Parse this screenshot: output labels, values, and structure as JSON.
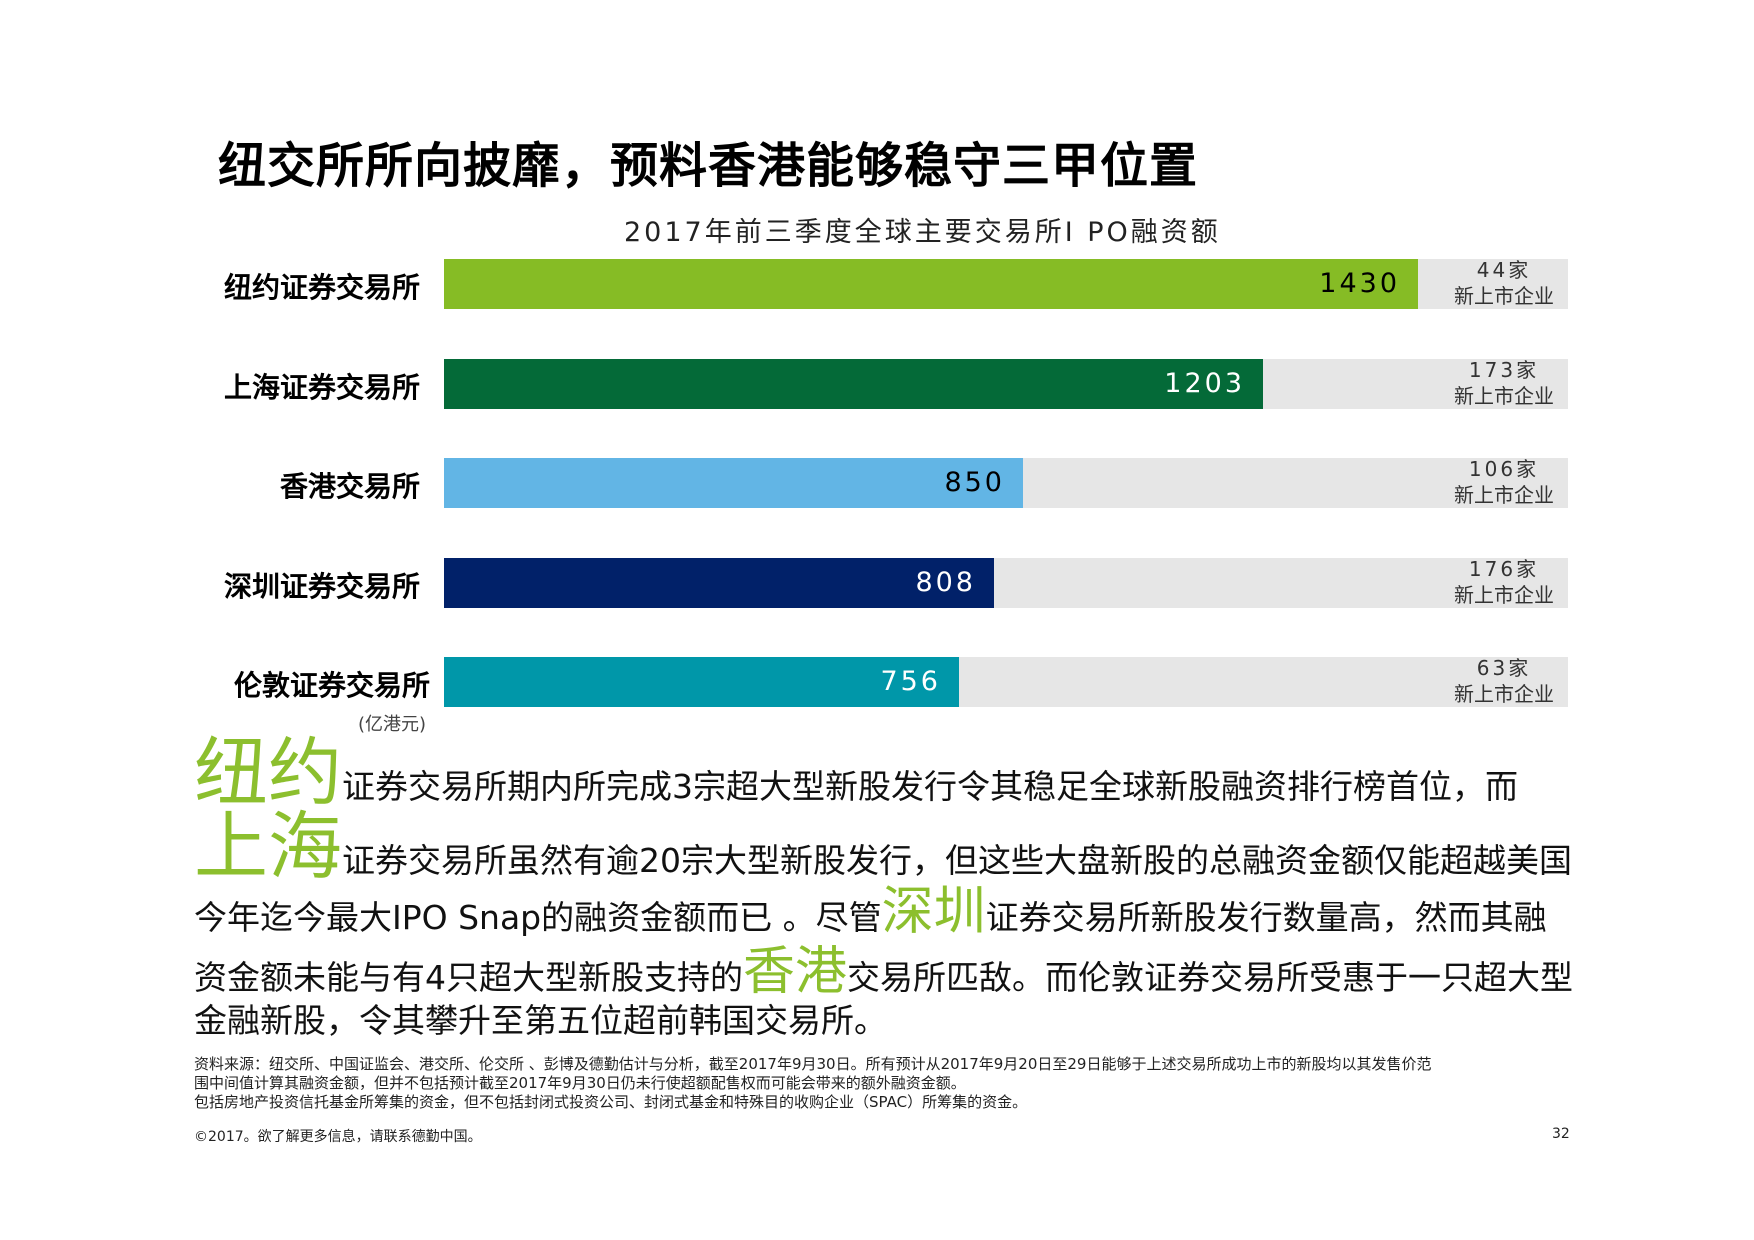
{
  "title": "纽交所所向披靡，预料香港能够稳守三甲位置",
  "chart_data": {
    "type": "bar",
    "orientation": "horizontal",
    "title": "2017年前三季度全球主要交易所I PO融资额",
    "unit_label": "(亿港元)",
    "categories": [
      "纽约证券交易所",
      "上海证券交易所",
      "香港交易所",
      "深圳证券交易所",
      "伦敦证券交易所"
    ],
    "values": [
      1430,
      1203,
      850,
      808,
      756
    ],
    "value_labels": [
      "1430",
      "1203",
      "850",
      "808",
      "756"
    ],
    "xlim": [
      0,
      1650
    ],
    "colors": [
      "#86bc25",
      "#046a38",
      "#62b5e5",
      "#012169",
      "#0097a9"
    ],
    "value_label_colors": [
      "#000000",
      "#ffffff",
      "#000000",
      "#ffffff",
      "#ffffff"
    ],
    "side_counts": [
      "44家",
      "173家",
      "106家",
      "176家",
      "63家"
    ],
    "side_count_sub": "新上市企业"
  },
  "paragraph": {
    "l1_big": "纽约",
    "l1_text": "证券交易所期内所完成3宗超大型新股发行令其稳足全球新股融资排行榜首位，而",
    "l2_big": "上海",
    "l2_text": "证券交易所虽然有逾20宗大型新股发行，但这些大盘新股的总融资金额仅能超越美国",
    "l3_text_a": "今年迄今最大IPO Snap的融资金额而已 。尽管",
    "l3_mid": "深圳",
    "l3_text_b": "证券交易所新股发行数量高，然而其融",
    "l4_text_a": "资金额未能与有4只超大型新股支持的",
    "l4_mid": "香港",
    "l4_text_b": "交易所匹敌。而伦敦证券交易所受惠于一只超大型",
    "l5_text": "金融新股，令其攀升至第五位超前韩国交易所。"
  },
  "source": {
    "line1": "资料来源：纽交所、中国证监会、港交所、伦交所 、彭博及德勤估计与分析，截至2017年9月30日。所有预计从2017年9月20日至29日能够于上述交易所成功上市的新股均以其发售价范",
    "line2": "围中间值计算其融资金额，但并不包括预计截至2017年9月30日仍未行使超额配售权而可能会带来的额外融资金额。",
    "line3": "包括房地产投资信托基金所筹集的资金，但不包括封闭式投资公司、封闭式基金和特殊目的收购企业（SPAC）所筹集的资金。"
  },
  "footer": {
    "copyright": "©2017。欲了解更多信息，请联系德勤中国。",
    "page": "32"
  }
}
